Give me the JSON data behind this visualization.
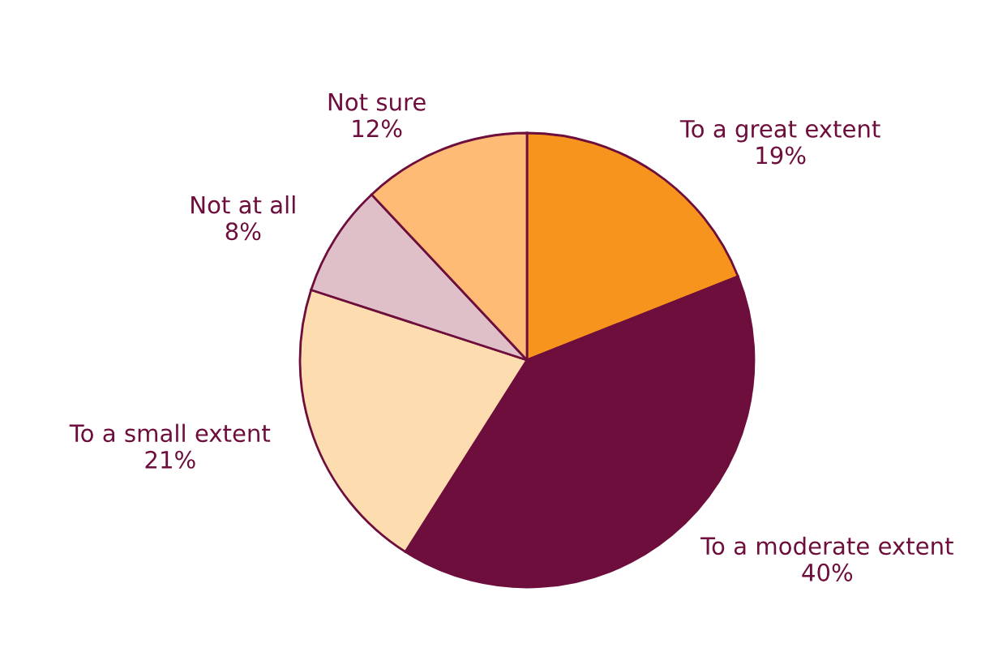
{
  "chart_data": {
    "type": "pie",
    "categories": [
      "To a great extent",
      "To a moderate extent",
      "To a small extent",
      "Not at all",
      "Not sure"
    ],
    "values": [
      19,
      40,
      21,
      8,
      12
    ],
    "value_labels": [
      "19%",
      "40%",
      "21%",
      "8%",
      "12%"
    ],
    "colors": [
      "#f7941d",
      "#6d0e3c",
      "#fddcb0",
      "#dfc0c8",
      "#fdbb76"
    ],
    "legend": false
  }
}
